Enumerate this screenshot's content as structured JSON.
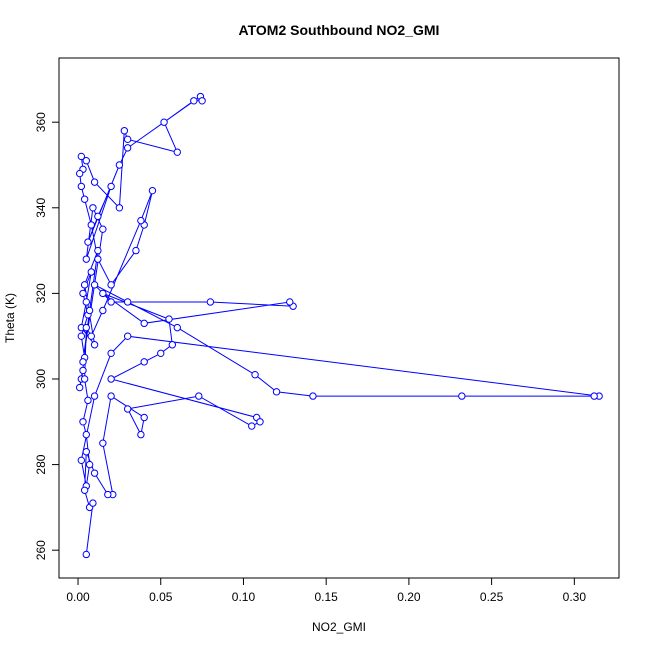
{
  "chart_data": {
    "type": "line",
    "title": "ATOM2 Southbound NO2_GMI",
    "xlabel": "NO2_GMI",
    "ylabel": "Theta (K)",
    "color": "#0000ff",
    "markers": true,
    "x": [
      0.002,
      0.003,
      0.001,
      0.004,
      0.002,
      0.006,
      0.003,
      0.008,
      0.005,
      0.002,
      0.01,
      0.004,
      0.012,
      0.007,
      0.003,
      0.015,
      0.009,
      0.005,
      0.02,
      0.012,
      0.006,
      0.025,
      0.03,
      0.074,
      0.075,
      0.07,
      0.052,
      0.06,
      0.03,
      0.028,
      0.025,
      0.01,
      0.005,
      0.002,
      0.003,
      0.001,
      0.002,
      0.004,
      0.008,
      0.012,
      0.02,
      0.035,
      0.04,
      0.045,
      0.038,
      0.015,
      0.008,
      0.005,
      0.004,
      0.006,
      0.003,
      0.005,
      0.007,
      0.005,
      0.002,
      0.01,
      0.02,
      0.03,
      0.315,
      0.312,
      0.232,
      0.142,
      0.12,
      0.107,
      0.06,
      0.03,
      0.01,
      0.02,
      0.08,
      0.13,
      0.128,
      0.04,
      0.015,
      0.055,
      0.057,
      0.05,
      0.04,
      0.02,
      0.108,
      0.11,
      0.105,
      0.073,
      0.03,
      0.038,
      0.04,
      0.02,
      0.015,
      0.021,
      0.018,
      0.01,
      0.005,
      0.004,
      0.007,
      0.009,
      0.005
    ],
    "values": [
      300,
      302,
      298,
      305,
      310,
      315,
      320,
      325,
      318,
      312,
      308,
      322,
      330,
      316,
      304,
      335,
      340,
      328,
      345,
      338,
      332,
      350,
      354,
      366,
      365,
      365,
      360,
      353,
      356,
      358,
      340,
      346,
      351,
      352,
      349,
      348,
      345,
      342,
      336,
      328,
      322,
      330,
      336,
      344,
      337,
      316,
      310,
      312,
      300,
      295,
      290,
      287,
      280,
      275,
      281,
      296,
      306,
      310,
      296,
      296,
      296,
      296,
      297,
      301,
      312,
      318,
      322,
      318,
      318,
      317,
      318,
      313,
      320,
      314,
      308,
      306,
      304,
      300,
      291,
      290,
      289,
      296,
      293,
      287,
      291,
      296,
      285,
      273,
      273,
      278,
      283,
      274,
      270,
      271,
      259
    ],
    "xlim": [
      -0.0115,
      0.327
    ],
    "ylim": [
      253.5,
      375
    ],
    "xticks": [
      {
        "value": 0,
        "label": "0.00"
      },
      {
        "value": 0.05,
        "label": "0.05"
      },
      {
        "value": 0.1,
        "label": "0.10"
      },
      {
        "value": 0.15,
        "label": "0.15"
      },
      {
        "value": 0.2,
        "label": "0.20"
      },
      {
        "value": 0.25,
        "label": "0.25"
      },
      {
        "value": 0.3,
        "label": "0.30"
      }
    ],
    "yticks": [
      260,
      280,
      300,
      320,
      340,
      360
    ]
  }
}
